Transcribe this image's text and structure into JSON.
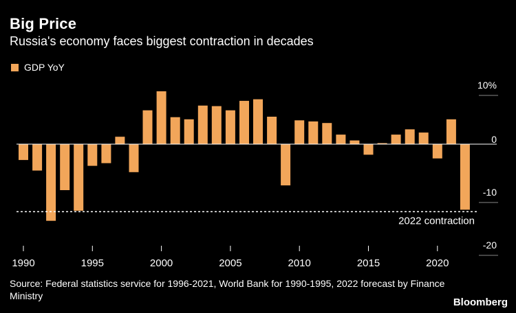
{
  "header": {
    "title": "Big Price",
    "subtitle": "Russia's economy faces biggest contraction in decades"
  },
  "legend": {
    "label": "GDP YoY",
    "color": "#F2A65A"
  },
  "annotation": {
    "label": "2022 contraction",
    "value": -12
  },
  "footer": {
    "source": "Source: Federal statistics service for 1996-2021, World Bank for 1990-1995, 2022 forecast by Finance Ministry",
    "brand": "Bloomberg"
  },
  "chart_data": {
    "type": "bar",
    "x": [
      1990,
      1991,
      1992,
      1993,
      1994,
      1995,
      1996,
      1997,
      1998,
      1999,
      2000,
      2001,
      2002,
      2003,
      2004,
      2005,
      2006,
      2007,
      2008,
      2009,
      2010,
      2011,
      2012,
      2013,
      2014,
      2015,
      2016,
      2017,
      2018,
      2019,
      2020,
      2021,
      2022
    ],
    "series": [
      {
        "name": "GDP YoY",
        "values": [
          -3.0,
          -5.0,
          -14.5,
          -8.7,
          -12.6,
          -4.1,
          -3.6,
          1.4,
          -5.3,
          6.4,
          10.0,
          5.1,
          4.7,
          7.3,
          7.2,
          6.4,
          8.2,
          8.5,
          5.2,
          -7.8,
          4.5,
          4.3,
          4.0,
          1.8,
          0.7,
          -2.0,
          0.2,
          1.8,
          2.8,
          2.2,
          -2.7,
          4.7,
          -12.4
        ]
      }
    ],
    "y_ticks": [
      10,
      0,
      -10,
      -20
    ],
    "y_tick_labels": [
      "10%",
      "0",
      "-10",
      "-20"
    ],
    "x_tick_labels": [
      "1990",
      "1995",
      "2000",
      "2005",
      "2010",
      "2015",
      "2020"
    ],
    "ylim": [
      -20,
      10
    ],
    "xlabel": "",
    "ylabel": "",
    "grid": false,
    "legend_position": "top-left"
  }
}
